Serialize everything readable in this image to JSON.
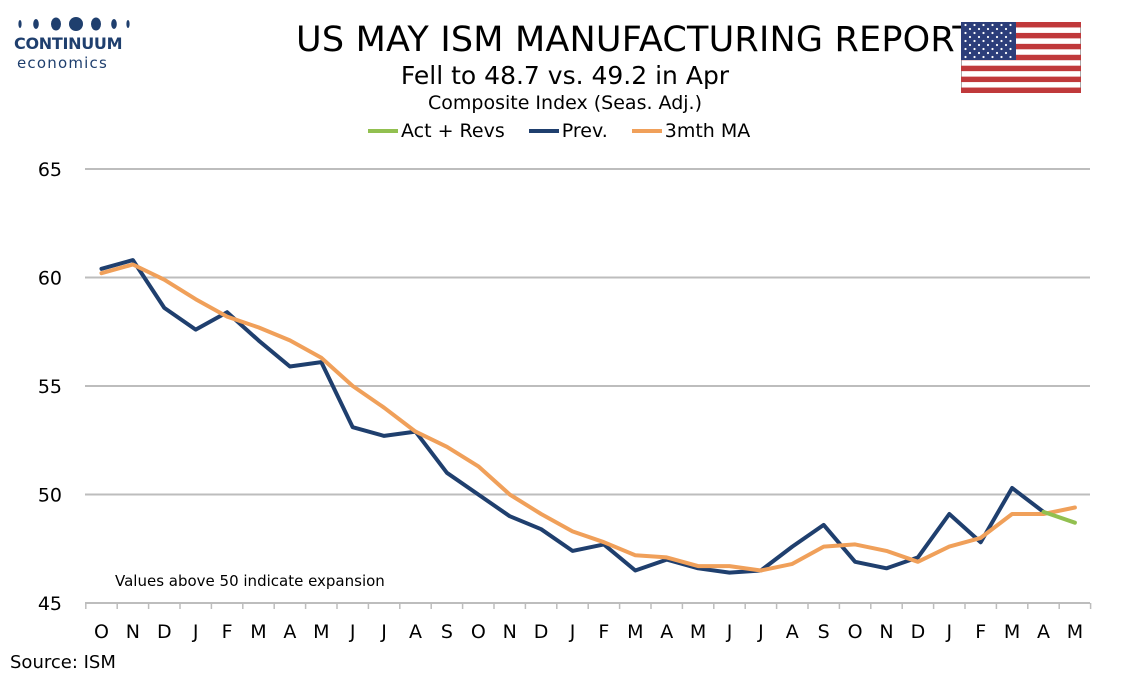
{
  "logo": {
    "name": "CONTINUUM",
    "sub": "economics",
    "color": "#1f3f6e"
  },
  "header": {
    "title": "US MAY ISM MANUFACTURING REPORT",
    "subtitle": "Fell to 48.7 vs. 49.2 in Apr",
    "subtitle2": "Composite Index (Seas. Adj.)"
  },
  "flag_icon": "us-flag-icon",
  "source": "Source: ISM",
  "chart_data": {
    "type": "line",
    "title": "Composite Index (Seas. Adj.)",
    "xlabel": "",
    "ylabel": "",
    "ylim": [
      45,
      65
    ],
    "yticks": [
      45,
      50,
      55,
      60,
      65
    ],
    "grid": true,
    "legend_position": "top",
    "categories": [
      "O",
      "N",
      "D",
      "J",
      "F",
      "M",
      "A",
      "M",
      "J",
      "J",
      "A",
      "S",
      "O",
      "N",
      "D",
      "J",
      "F",
      "M",
      "A",
      "M",
      "J",
      "J",
      "A",
      "S",
      "O",
      "N",
      "D",
      "J",
      "F",
      "M",
      "A",
      "M"
    ],
    "series": [
      {
        "name": "Act + Revs",
        "color": "#92c050",
        "values": [
          null,
          null,
          null,
          null,
          null,
          null,
          null,
          null,
          null,
          null,
          null,
          null,
          null,
          null,
          null,
          null,
          null,
          null,
          null,
          null,
          null,
          null,
          null,
          null,
          null,
          null,
          null,
          null,
          null,
          null,
          49.2,
          48.7
        ]
      },
      {
        "name": "Prev.",
        "color": "#1f3f6e",
        "values": [
          60.4,
          60.8,
          58.6,
          57.6,
          58.4,
          57.1,
          55.9,
          56.1,
          53.1,
          52.7,
          52.9,
          51.0,
          50.0,
          49.0,
          48.4,
          47.4,
          47.7,
          46.5,
          47.0,
          46.6,
          46.4,
          46.5,
          47.6,
          48.6,
          46.9,
          46.6,
          47.1,
          49.1,
          47.8,
          50.3,
          49.2,
          null
        ]
      },
      {
        "name": "3mth MA",
        "color": "#f0a05a",
        "values": [
          60.2,
          60.6,
          59.9,
          59.0,
          58.2,
          57.7,
          57.1,
          56.3,
          55.0,
          54.0,
          52.9,
          52.2,
          51.3,
          50.0,
          49.1,
          48.3,
          47.8,
          47.2,
          47.1,
          46.7,
          46.7,
          46.5,
          46.8,
          47.6,
          47.7,
          47.4,
          46.9,
          47.6,
          48.0,
          49.1,
          49.1,
          49.4
        ]
      }
    ],
    "annotation": "Values above 50 indicate expansion"
  }
}
